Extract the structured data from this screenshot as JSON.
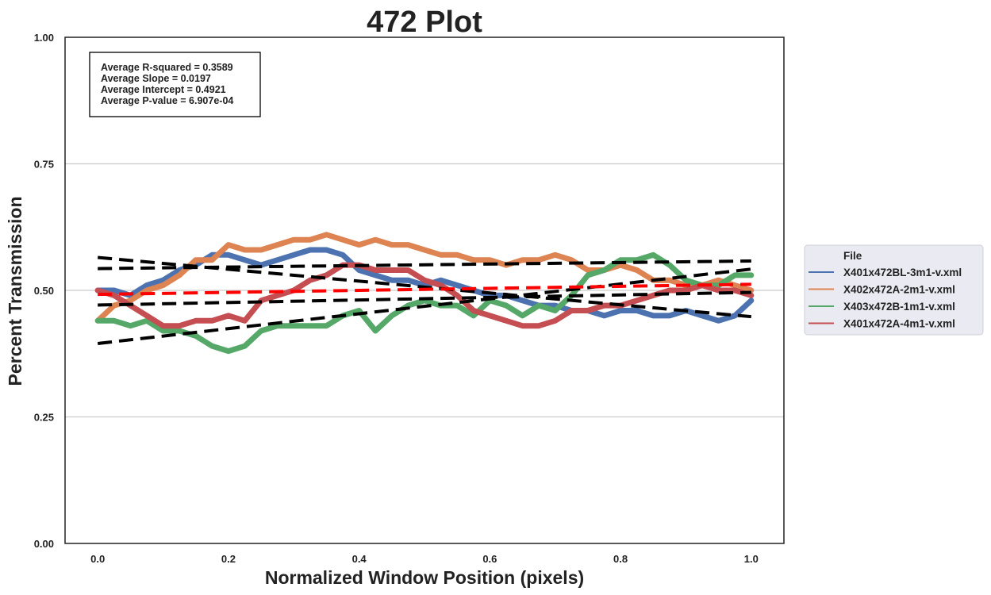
{
  "chart_data": {
    "type": "line",
    "title": "472 Plot",
    "xlabel": "Normalized Window Position (pixels)",
    "ylabel": "Percent Transmission",
    "xlim": [
      -0.05,
      1.05
    ],
    "ylim": [
      0.0,
      1.0
    ],
    "x_ticks": [
      "0.0",
      "0.2",
      "0.4",
      "0.6",
      "0.8",
      "1.0"
    ],
    "x_tick_values": [
      0.0,
      0.2,
      0.4,
      0.6,
      0.8,
      1.0
    ],
    "y_ticks": [
      "0.00",
      "0.25",
      "0.50",
      "0.75",
      "1.00"
    ],
    "y_tick_values": [
      0.0,
      0.25,
      0.5,
      0.75,
      1.0
    ],
    "grid": "horizontal",
    "legend_placement": "right, outside plot",
    "stats": [
      "Average R-squared = 0.3589",
      "Average Slope = 0.0197",
      "Average Intercept = 0.4921",
      "Average P-value = 6.907e-04"
    ],
    "legend": {
      "title": "File",
      "entries": [
        "X401x472BL-3m1-v.xml",
        "X402x472A-2m1-v.xml",
        "X403x472B-1m1-v.xml",
        "X401x472A-4m1-v.xml"
      ]
    },
    "series": [
      {
        "name": "X401x472BL-3m1-v.xml",
        "color": "#4c72b0",
        "x": [
          0.0,
          0.025,
          0.05,
          0.075,
          0.1,
          0.125,
          0.15,
          0.175,
          0.2,
          0.225,
          0.25,
          0.275,
          0.3,
          0.325,
          0.35,
          0.375,
          0.4,
          0.425,
          0.45,
          0.475,
          0.5,
          0.525,
          0.55,
          0.575,
          0.6,
          0.625,
          0.65,
          0.675,
          0.7,
          0.725,
          0.75,
          0.775,
          0.8,
          0.825,
          0.85,
          0.875,
          0.9,
          0.925,
          0.95,
          0.975,
          1.0
        ],
        "y": [
          0.5,
          0.5,
          0.49,
          0.51,
          0.52,
          0.54,
          0.55,
          0.57,
          0.57,
          0.56,
          0.55,
          0.56,
          0.57,
          0.58,
          0.58,
          0.57,
          0.54,
          0.53,
          0.52,
          0.52,
          0.51,
          0.52,
          0.51,
          0.5,
          0.49,
          0.49,
          0.48,
          0.47,
          0.47,
          0.46,
          0.46,
          0.45,
          0.46,
          0.46,
          0.45,
          0.45,
          0.46,
          0.45,
          0.44,
          0.45,
          0.48
        ]
      },
      {
        "name": "X402x472A-2m1-v.xml",
        "color": "#dd8452",
        "x": [
          0.0,
          0.025,
          0.05,
          0.075,
          0.1,
          0.125,
          0.15,
          0.175,
          0.2,
          0.225,
          0.25,
          0.275,
          0.3,
          0.325,
          0.35,
          0.375,
          0.4,
          0.425,
          0.45,
          0.475,
          0.5,
          0.525,
          0.55,
          0.575,
          0.6,
          0.625,
          0.65,
          0.675,
          0.7,
          0.725,
          0.75,
          0.775,
          0.8,
          0.825,
          0.85,
          0.875,
          0.9,
          0.925,
          0.95,
          0.975,
          1.0
        ],
        "y": [
          0.44,
          0.47,
          0.48,
          0.5,
          0.51,
          0.53,
          0.56,
          0.56,
          0.59,
          0.58,
          0.58,
          0.59,
          0.6,
          0.6,
          0.61,
          0.6,
          0.59,
          0.6,
          0.59,
          0.59,
          0.58,
          0.57,
          0.57,
          0.56,
          0.56,
          0.55,
          0.56,
          0.56,
          0.57,
          0.56,
          0.54,
          0.54,
          0.55,
          0.54,
          0.52,
          0.52,
          0.51,
          0.51,
          0.52,
          0.51,
          0.5
        ]
      },
      {
        "name": "X403x472B-1m1-v.xml",
        "color": "#55a868",
        "x": [
          0.0,
          0.025,
          0.05,
          0.075,
          0.1,
          0.125,
          0.15,
          0.175,
          0.2,
          0.225,
          0.25,
          0.275,
          0.3,
          0.325,
          0.35,
          0.375,
          0.4,
          0.425,
          0.45,
          0.475,
          0.5,
          0.525,
          0.55,
          0.575,
          0.6,
          0.625,
          0.65,
          0.675,
          0.7,
          0.725,
          0.75,
          0.775,
          0.8,
          0.825,
          0.85,
          0.875,
          0.9,
          0.925,
          0.95,
          0.975,
          1.0
        ],
        "y": [
          0.44,
          0.44,
          0.43,
          0.44,
          0.42,
          0.42,
          0.41,
          0.39,
          0.38,
          0.39,
          0.42,
          0.43,
          0.43,
          0.43,
          0.43,
          0.45,
          0.46,
          0.42,
          0.45,
          0.47,
          0.48,
          0.47,
          0.47,
          0.45,
          0.48,
          0.47,
          0.45,
          0.47,
          0.46,
          0.49,
          0.53,
          0.54,
          0.56,
          0.56,
          0.57,
          0.55,
          0.52,
          0.51,
          0.51,
          0.53,
          0.53
        ]
      },
      {
        "name": "X401x472A-4m1-v.xml",
        "color": "#c44e52",
        "x": [
          0.0,
          0.025,
          0.05,
          0.075,
          0.1,
          0.125,
          0.15,
          0.175,
          0.2,
          0.225,
          0.25,
          0.275,
          0.3,
          0.325,
          0.35,
          0.375,
          0.4,
          0.425,
          0.45,
          0.475,
          0.5,
          0.525,
          0.55,
          0.575,
          0.6,
          0.625,
          0.65,
          0.675,
          0.7,
          0.725,
          0.75,
          0.775,
          0.8,
          0.825,
          0.85,
          0.875,
          0.9,
          0.925,
          0.95,
          0.975,
          1.0
        ],
        "y": [
          0.5,
          0.49,
          0.47,
          0.45,
          0.43,
          0.43,
          0.44,
          0.44,
          0.45,
          0.44,
          0.48,
          0.49,
          0.5,
          0.52,
          0.53,
          0.55,
          0.55,
          0.54,
          0.54,
          0.54,
          0.52,
          0.51,
          0.49,
          0.46,
          0.45,
          0.44,
          0.43,
          0.43,
          0.44,
          0.46,
          0.46,
          0.47,
          0.47,
          0.48,
          0.49,
          0.5,
          0.5,
          0.51,
          0.5,
          0.5,
          0.49
        ]
      }
    ],
    "fit_lines": [
      {
        "x": [
          0.0,
          1.0
        ],
        "y": [
          0.565,
          0.448
        ]
      },
      {
        "x": [
          0.0,
          1.0
        ],
        "y": [
          0.543,
          0.558
        ]
      },
      {
        "x": [
          0.0,
          1.0
        ],
        "y": [
          0.471,
          0.496
        ]
      },
      {
        "x": [
          0.0,
          1.0
        ],
        "y": [
          0.395,
          0.542
        ]
      }
    ],
    "average_fit_line": {
      "color": "#ff0000",
      "x": [
        0.0,
        1.0
      ],
      "y": [
        0.492,
        0.512
      ]
    }
  }
}
